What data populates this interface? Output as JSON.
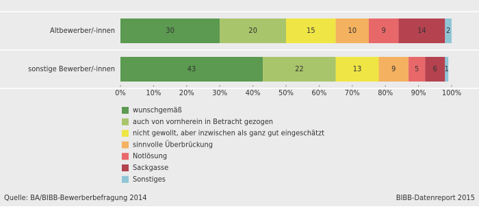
{
  "chart_data": {
    "type": "bar",
    "orientation": "horizontal",
    "stacked": true,
    "categories": [
      "Altbewerber/-innen",
      "sonstige Bewerber/-innen"
    ],
    "series": [
      {
        "name": "wunschgemäß",
        "color": "#5b9a50",
        "values": [
          30,
          43
        ]
      },
      {
        "name": "auch von vornherein in Betracht gezogen",
        "color": "#a9c56b",
        "values": [
          20,
          22
        ]
      },
      {
        "name": "nicht gewollt, aber inzwischen als ganz gut eingeschätzt",
        "color": "#efe545",
        "values": [
          15,
          13
        ]
      },
      {
        "name": "sinnvolle Überbrückung",
        "color": "#f4b15f",
        "values": [
          10,
          9
        ]
      },
      {
        "name": "Notlösung",
        "color": "#e8686a",
        "values": [
          9,
          5
        ]
      },
      {
        "name": "Sackgasse",
        "color": "#b4424f",
        "values": [
          14,
          6
        ]
      },
      {
        "name": "Sonstiges",
        "color": "#8fc6d6",
        "values": [
          2,
          1
        ]
      }
    ],
    "xlim": [
      0,
      100
    ],
    "xticks": [
      {
        "value": 0,
        "label": "0%"
      },
      {
        "value": 10,
        "label": "10%"
      },
      {
        "value": 20,
        "label": "20%"
      },
      {
        "value": 30,
        "label": "30%"
      },
      {
        "value": 40,
        "label": "40%"
      },
      {
        "value": 50,
        "label": "50%"
      },
      {
        "value": 60,
        "label": "60%"
      },
      {
        "value": 70,
        "label": "70%"
      },
      {
        "value": 80,
        "label": "80%"
      },
      {
        "value": 90,
        "label": "90%"
      },
      {
        "value": 100,
        "label": "100%"
      }
    ],
    "legend": "bottom-left",
    "source": "Quelle: BA/BIBB-Bewerberbefragung 2014",
    "credit": "BIBB-Datenreport 2015"
  }
}
